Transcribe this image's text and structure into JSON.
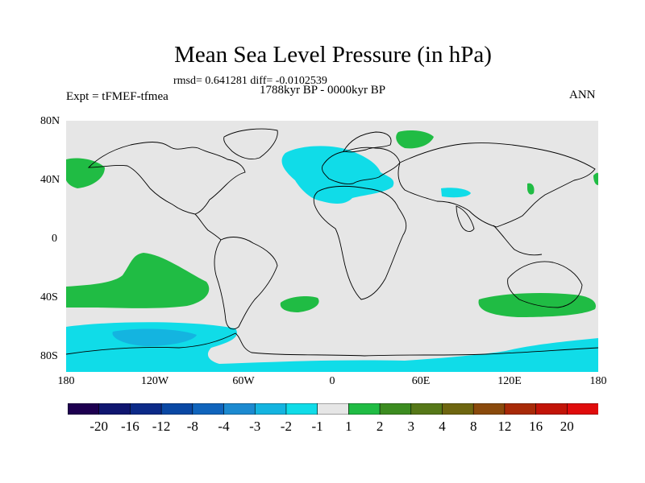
{
  "title": "Mean Sea Level Pressure (in hPa)",
  "stats": "rmsd= 0.641281 diff= -0.0102539",
  "period": "1788kyr BP - 0000kyr BP",
  "experiment": "Expt = tFMEF-tfmea",
  "season": "ANN",
  "lat_labels": [
    "80N",
    "40N",
    "0",
    "40S",
    "80S"
  ],
  "lon_labels": [
    "180",
    "120W",
    "60W",
    "0",
    "60E",
    "120E",
    "180"
  ],
  "colorbar": {
    "labels": [
      "-20",
      "-16",
      "-12",
      "-8",
      "-4",
      "-3",
      "-2",
      "-1",
      "1",
      "2",
      "3",
      "4",
      "8",
      "12",
      "16",
      "20"
    ],
    "colors": [
      "#1e0050",
      "#101670",
      "#0c2a88",
      "#0a48a4",
      "#1064bc",
      "#1c8ad0",
      "#14b4e0",
      "#10dce8",
      "#e6e6e6",
      "#20bc44",
      "#3c8c20",
      "#567818",
      "#6e6610",
      "#8a4a0c",
      "#a82a08",
      "#c21408",
      "#e00c0c"
    ]
  },
  "colors": {
    "neutral": "#e6e6e6",
    "positive_2": "#20bc44",
    "negative_2": "#10dce8",
    "negative_3": "#14b4e0"
  }
}
